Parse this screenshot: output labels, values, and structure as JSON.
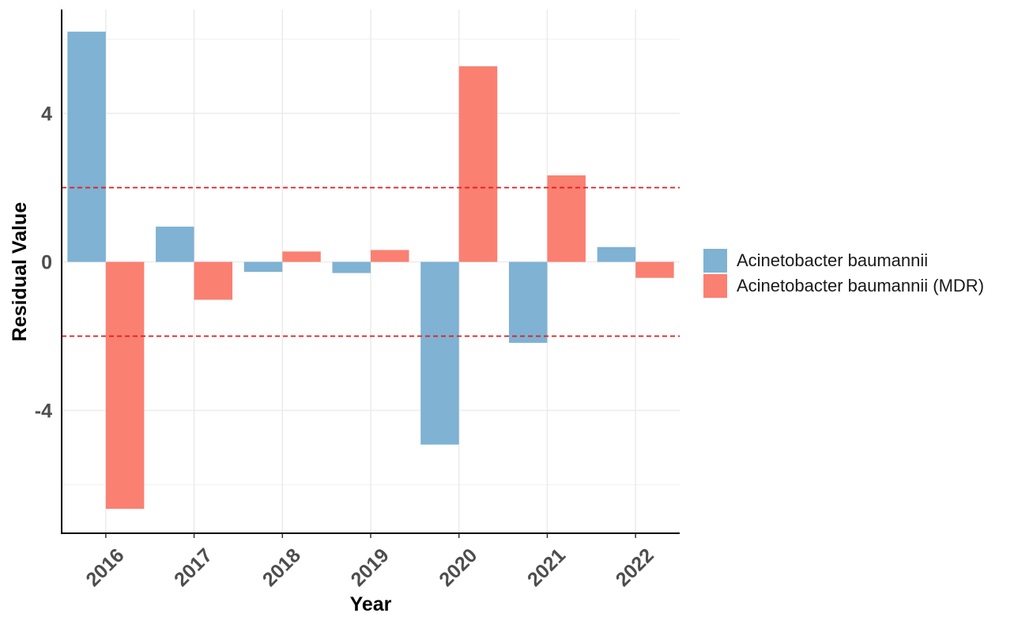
{
  "chart_data": {
    "type": "bar",
    "xlabel": "Year",
    "ylabel": "Residual Value",
    "categories": [
      "2016",
      "2017",
      "2018",
      "2019",
      "2020",
      "2021",
      "2022"
    ],
    "series": [
      {
        "name": "Acinetobacter baumannii",
        "color": "#7FB2D3",
        "values": [
          6.2,
          0.95,
          -0.27,
          -0.3,
          -4.92,
          -2.18,
          0.4
        ]
      },
      {
        "name": "Acinetobacter baumannii (MDR)",
        "color": "#FA8072",
        "values": [
          -6.65,
          -1.02,
          0.28,
          0.32,
          5.27,
          2.33,
          -0.43
        ]
      }
    ],
    "ylim": [
      -7.3,
      6.9
    ],
    "yticks": [
      4,
      0,
      -4
    ],
    "reference_lines": [
      2,
      -2
    ],
    "reference_line_color": "#E41A1C",
    "grid": true,
    "legend_position": "right"
  }
}
